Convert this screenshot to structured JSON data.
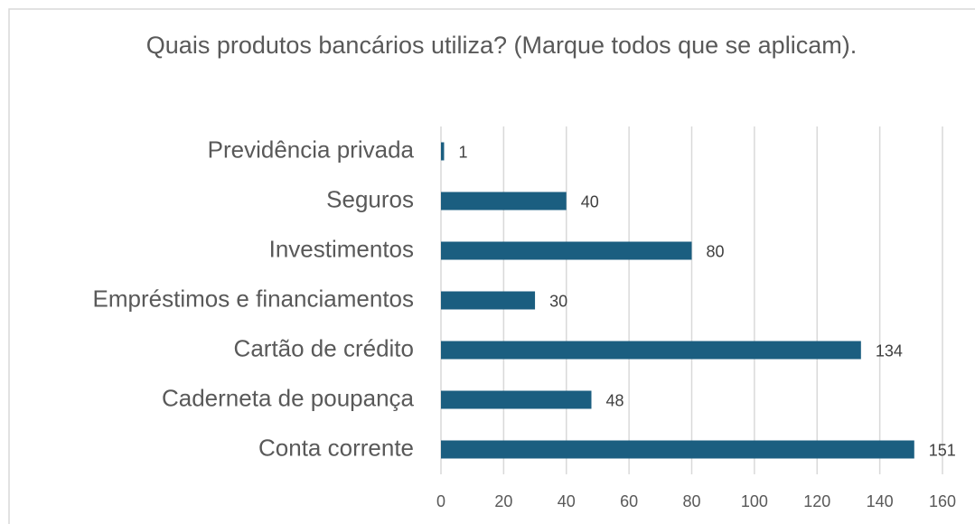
{
  "chart_data": {
    "type": "bar",
    "orientation": "horizontal",
    "title": "Quais produtos bancários utiliza? (Marque todos que se aplicam).",
    "categories": [
      "Previdência privada",
      "Seguros",
      "Investimentos",
      "Empréstimos e financiamentos",
      "Cartão de crédito",
      "Caderneta de poupança",
      "Conta corrente"
    ],
    "values": [
      1,
      40,
      80,
      30,
      134,
      48,
      151
    ],
    "color": "#1b5e80",
    "xlim": [
      0,
      160
    ],
    "xticks": [
      0,
      20,
      40,
      60,
      80,
      100,
      120,
      140,
      160
    ],
    "grid": true
  }
}
